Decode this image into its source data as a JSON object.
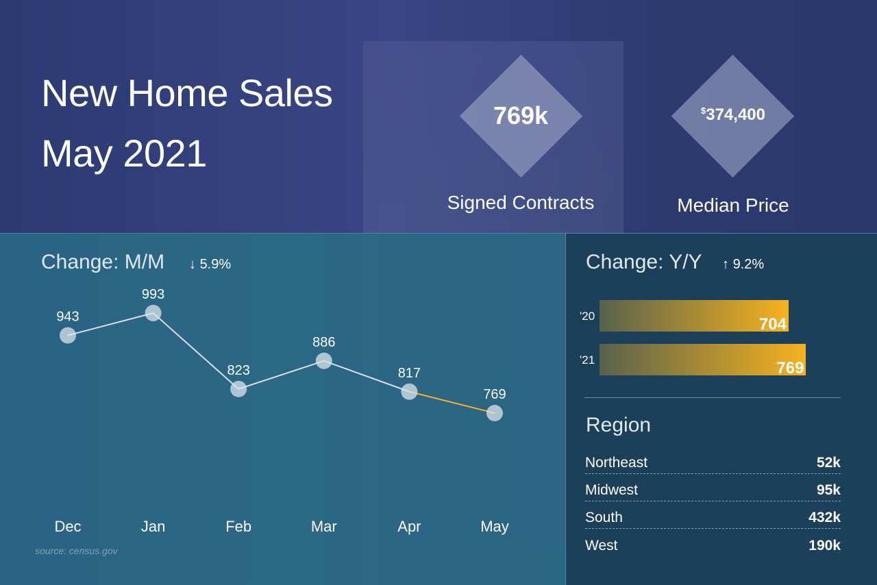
{
  "header": {
    "title_line1": "New Home Sales",
    "title_line2": "May 2021"
  },
  "kpis": [
    {
      "value": "769k",
      "label": "Signed Contracts"
    },
    {
      "currency": "$",
      "value": "374,400",
      "label": "Median Price"
    }
  ],
  "mm": {
    "title": "Change: M/M",
    "direction": "down",
    "change": "5.9%"
  },
  "yy": {
    "title": "Change: Y/Y",
    "direction": "up",
    "change": "9.2%"
  },
  "regions": {
    "title": "Region",
    "items": [
      {
        "name": "Northeast",
        "value": "52k"
      },
      {
        "name": "Midwest",
        "value": "95k"
      },
      {
        "name": "South",
        "value": "432k"
      },
      {
        "name": "West",
        "value": "190k"
      }
    ]
  },
  "source": "source: census.gov",
  "colors": {
    "accent": "#f7b21e",
    "top_band": "#2d3a70",
    "panel_left": "#2a6585",
    "panel_right": "#1c405a"
  },
  "chart_data": [
    {
      "type": "line",
      "categories": [
        "Dec",
        "Jan",
        "Feb",
        "Mar",
        "Apr",
        "May"
      ],
      "values": [
        943,
        993,
        823,
        886,
        817,
        769
      ],
      "data_labels": [
        "943",
        "993",
        "823",
        "886",
        "817",
        "769"
      ],
      "highlight_last_segment": "#f7b21e"
    },
    {
      "type": "bar",
      "orientation": "horizontal",
      "categories": [
        "'20",
        "'21"
      ],
      "values": [
        704,
        769
      ],
      "data_labels": [
        "704",
        "769"
      ]
    }
  ]
}
